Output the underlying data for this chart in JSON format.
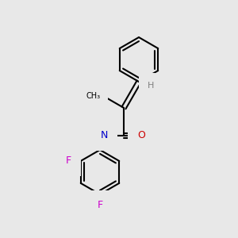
{
  "background_color": "#e8e8e8",
  "bond_color": "#000000",
  "bond_lw": 1.5,
  "atom_colors": {
    "C": "#000000",
    "H": "#808080",
    "N": "#0000cc",
    "O": "#cc0000",
    "F": "#cc00cc"
  },
  "font_size": 9,
  "font_size_small": 8
}
